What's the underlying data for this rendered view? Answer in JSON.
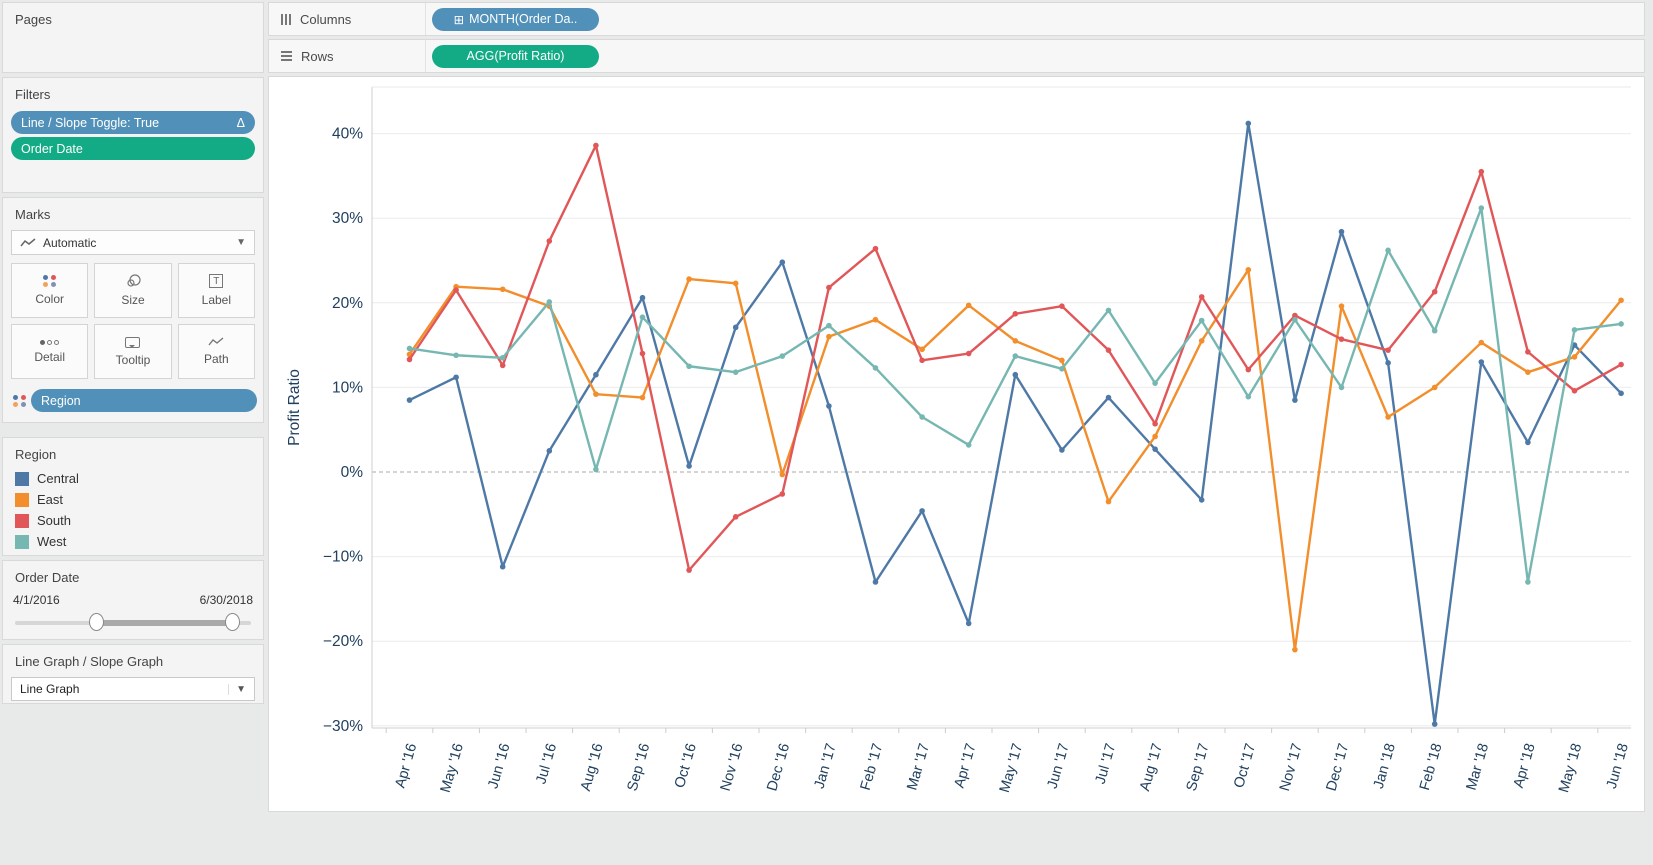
{
  "sidebar": {
    "pages": {
      "title": "Pages"
    },
    "filters": {
      "title": "Filters",
      "pills": [
        {
          "label": "Line / Slope Toggle: True",
          "type": "blue",
          "right_icon": "Δ"
        },
        {
          "label": "Order Date",
          "type": "green",
          "right_icon": ""
        }
      ]
    },
    "marks": {
      "title": "Marks",
      "mark_type": "Automatic",
      "buttons": [
        "Color",
        "Size",
        "Label",
        "Detail",
        "Tooltip",
        "Path"
      ],
      "encoding_pill": "Region"
    },
    "legend": {
      "title": "Region",
      "items": [
        {
          "label": "Central",
          "color": "#4e79a7"
        },
        {
          "label": "East",
          "color": "#f28e2b"
        },
        {
          "label": "South",
          "color": "#e15759"
        },
        {
          "label": "West",
          "color": "#76b7b2"
        }
      ]
    },
    "order_date": {
      "title": "Order Date",
      "start": "4/1/2016",
      "end": "6/30/2018",
      "handle_left_pct": 34,
      "handle_right_pct": 91
    },
    "toggle": {
      "title": "Line Graph / Slope Graph",
      "value": "Line Graph"
    }
  },
  "shelves": {
    "columns_label": "Columns",
    "rows_label": "Rows",
    "columns_pill": "MONTH(Order Da..",
    "columns_pill_icon": "⊞",
    "rows_pill": "AGG(Profit Ratio)",
    "pill_blue": "#5190b8",
    "pill_green": "#12ab85"
  },
  "chart_data": {
    "type": "line",
    "title": "",
    "xlabel": "",
    "ylabel": "Profit Ratio",
    "ylim": [
      -35,
      45
    ],
    "yticks": [
      40,
      30,
      20,
      10,
      0,
      -10,
      -20,
      -30
    ],
    "grid": true,
    "zero_line": "dashed",
    "legend_position": "left-panel",
    "categories": [
      "Apr '16",
      "May '16",
      "Jun '16",
      "Jul '16",
      "Aug '16",
      "Sep '16",
      "Oct '16",
      "Nov '16",
      "Dec '16",
      "Jan '17",
      "Feb '17",
      "Mar '17",
      "Apr '17",
      "May '17",
      "Jun '17",
      "Jul '17",
      "Aug '17",
      "Sep '17",
      "Oct '17",
      "Nov '17",
      "Dec '17",
      "Jan '18",
      "Feb '18",
      "Mar '18",
      "Apr '18",
      "May '18",
      "Jun '18"
    ],
    "unit": "%",
    "series": [
      {
        "name": "Central",
        "color": "#4e79a7",
        "values": [
          8.5,
          11.2,
          -11.2,
          2.5,
          11.5,
          20.6,
          0.7,
          17.1,
          24.8,
          7.8,
          -13.0,
          -4.6,
          -17.9,
          11.5,
          2.6,
          8.8,
          2.7,
          -3.3,
          41.2,
          8.5,
          28.4,
          12.9,
          -29.8,
          13.0,
          3.5,
          15.0,
          9.3
        ]
      },
      {
        "name": "East",
        "color": "#f28e2b",
        "values": [
          13.9,
          21.9,
          21.6,
          19.6,
          9.2,
          8.8,
          22.8,
          22.3,
          -0.3,
          16.0,
          18.0,
          14.5,
          19.7,
          15.5,
          13.2,
          -3.5,
          4.2,
          15.5,
          23.9,
          -21.0,
          19.6,
          6.5,
          10.0,
          15.3,
          11.8,
          13.6,
          20.3
        ]
      },
      {
        "name": "South",
        "color": "#e15759",
        "values": [
          13.3,
          21.5,
          12.6,
          27.3,
          38.6,
          14.0,
          -11.6,
          -5.3,
          -2.6,
          21.8,
          26.4,
          13.2,
          14.0,
          18.7,
          19.6,
          14.4,
          5.7,
          20.7,
          12.1,
          18.5,
          15.7,
          14.4,
          21.3,
          35.5,
          14.2,
          9.6,
          12.7
        ]
      },
      {
        "name": "West",
        "color": "#76b7b2",
        "values": [
          14.6,
          13.8,
          13.5,
          20.1,
          0.3,
          18.3,
          12.5,
          11.8,
          13.7,
          17.3,
          12.3,
          6.5,
          3.2,
          13.7,
          12.2,
          19.1,
          10.5,
          17.9,
          8.9,
          18.0,
          10.0,
          26.2,
          16.7,
          31.2,
          -13.0,
          16.8,
          17.5
        ]
      }
    ],
    "axis_text_color": "#20405e"
  }
}
